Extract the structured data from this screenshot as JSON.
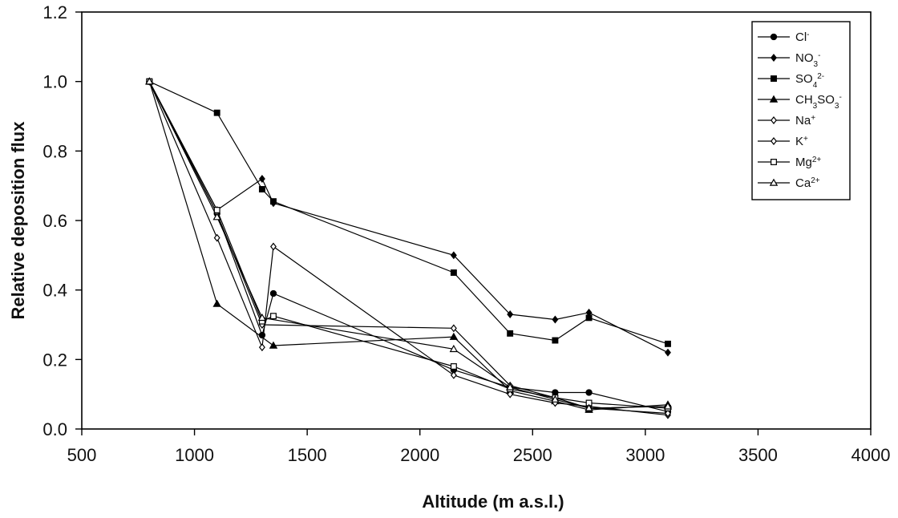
{
  "chart_data": {
    "type": "line",
    "xlabel": "Altitude (m a.s.l.)",
    "ylabel": "Relative deposition flux",
    "xlim": [
      500,
      4000
    ],
    "ylim": [
      0,
      1.2
    ],
    "xticks": [
      "500",
      "1000",
      "1500",
      "2000",
      "2500",
      "3000",
      "3500",
      "4000"
    ],
    "yticks": [
      "0.0",
      "0.2",
      "0.4",
      "0.6",
      "0.8",
      "1.0",
      "1.2"
    ],
    "grid": false,
    "legend_position": "top-right",
    "series": [
      {
        "name": "Cl-",
        "label_base": "Cl",
        "label_sup": "-",
        "label_sub": "",
        "label_tail": "",
        "label_tail_sup": "",
        "marker": "circle",
        "fill": "filled",
        "points": [
          [
            800,
            1.0
          ],
          [
            1100,
            0.62
          ],
          [
            1300,
            0.27
          ],
          [
            1350,
            0.39
          ],
          [
            2150,
            0.17
          ],
          [
            2400,
            0.12
          ],
          [
            2600,
            0.105
          ],
          [
            2750,
            0.105
          ],
          [
            3100,
            0.05
          ]
        ]
      },
      {
        "name": "NO3-",
        "label_base": "NO",
        "label_sup": "",
        "label_sub": "3",
        "label_tail": "",
        "label_tail_sup": "-",
        "marker": "diamond",
        "fill": "filled",
        "points": [
          [
            800,
            1.0
          ],
          [
            1100,
            0.63
          ],
          [
            1300,
            0.72
          ],
          [
            1350,
            0.65
          ],
          [
            2150,
            0.5
          ],
          [
            2400,
            0.33
          ],
          [
            2600,
            0.315
          ],
          [
            2750,
            0.335
          ],
          [
            3100,
            0.22
          ]
        ]
      },
      {
        "name": "SO42-",
        "label_base": "SO",
        "label_sup": "",
        "label_sub": "4",
        "label_tail": "",
        "label_tail_sup": "2-",
        "marker": "square",
        "fill": "filled",
        "points": [
          [
            800,
            1.0
          ],
          [
            1100,
            0.91
          ],
          [
            1300,
            0.69
          ],
          [
            1350,
            0.655
          ],
          [
            2150,
            0.45
          ],
          [
            2400,
            0.275
          ],
          [
            2600,
            0.255
          ],
          [
            2750,
            0.32
          ],
          [
            3100,
            0.245
          ]
        ]
      },
      {
        "name": "CH3SO3-",
        "label_base": "CH",
        "label_sup": "",
        "label_sub": "3",
        "label_tail": "SO",
        "label_tail_sub": "3",
        "label_tail_sup": "-",
        "marker": "triangle",
        "fill": "filled",
        "points": [
          [
            800,
            1.0
          ],
          [
            1100,
            0.36
          ],
          [
            1350,
            0.24
          ],
          [
            2150,
            0.265
          ],
          [
            2400,
            0.11
          ],
          [
            2600,
            0.08
          ],
          [
            2750,
            0.055
          ],
          [
            3100,
            0.07
          ]
        ]
      },
      {
        "name": "Na+",
        "label_base": "Na",
        "label_sup": "+",
        "label_sub": "",
        "label_tail": "",
        "label_tail_sup": "",
        "marker": "diamond",
        "fill": "open",
        "points": [
          [
            800,
            1.0
          ],
          [
            1100,
            0.55
          ],
          [
            1300,
            0.235
          ],
          [
            1350,
            0.525
          ],
          [
            2150,
            0.155
          ],
          [
            2400,
            0.1
          ],
          [
            2600,
            0.075
          ],
          [
            2750,
            0.065
          ],
          [
            3100,
            0.04
          ]
        ]
      },
      {
        "name": "K+",
        "label_base": "K",
        "label_sup": "+",
        "label_sub": "",
        "label_tail": "",
        "label_tail_sup": "",
        "marker": "diamond",
        "fill": "open",
        "points": [
          [
            800,
            1.0
          ],
          [
            1100,
            0.62
          ],
          [
            1300,
            0.3
          ],
          [
            2150,
            0.29
          ],
          [
            2400,
            0.125
          ],
          [
            2600,
            0.09
          ],
          [
            2750,
            0.06
          ],
          [
            3100,
            0.045
          ]
        ]
      },
      {
        "name": "Mg2+",
        "label_base": "Mg",
        "label_sup": "2+",
        "label_sub": "",
        "label_tail": "",
        "label_tail_sup": "",
        "marker": "square",
        "fill": "open",
        "points": [
          [
            800,
            1.0
          ],
          [
            1100,
            0.63
          ],
          [
            1300,
            0.31
          ],
          [
            1350,
            0.325
          ],
          [
            2150,
            0.18
          ],
          [
            2400,
            0.115
          ],
          [
            2600,
            0.09
          ],
          [
            2750,
            0.075
          ],
          [
            3100,
            0.06
          ]
        ]
      },
      {
        "name": "Ca2+",
        "label_base": "Ca",
        "label_sup": "2+",
        "label_sub": "",
        "label_tail": "",
        "label_tail_sup": "",
        "marker": "triangle",
        "fill": "open",
        "points": [
          [
            800,
            1.0
          ],
          [
            1100,
            0.61
          ],
          [
            1300,
            0.32
          ],
          [
            2150,
            0.23
          ],
          [
            2400,
            0.12
          ],
          [
            2600,
            0.085
          ],
          [
            2750,
            0.06
          ],
          [
            3100,
            0.065
          ]
        ]
      }
    ]
  }
}
